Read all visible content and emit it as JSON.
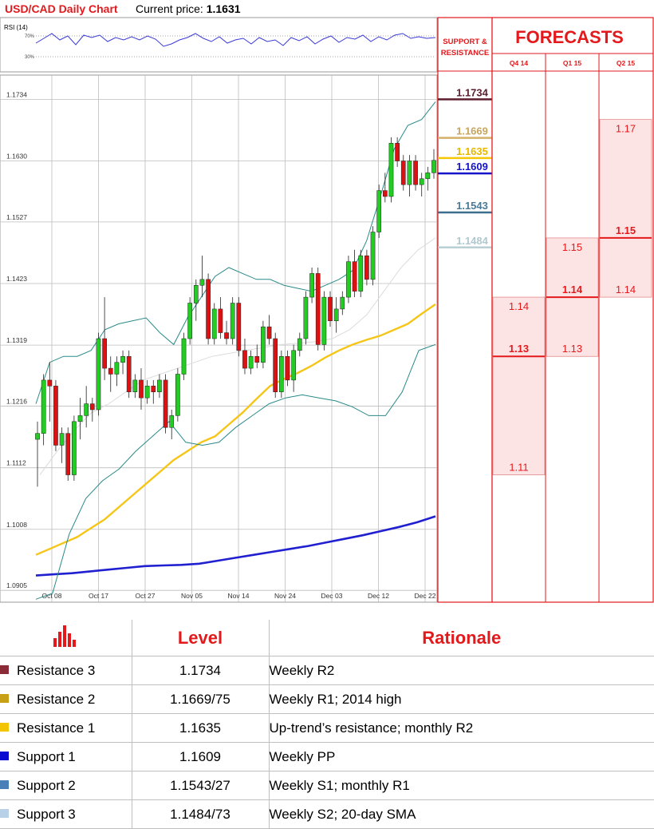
{
  "header": {
    "chart_title": "USD/CAD Daily Chart",
    "price_label": "Current price:",
    "price_value": "1.1631"
  },
  "rsi": {
    "label": "RSI (14)",
    "upper": "70%",
    "lower": "30%"
  },
  "support_resistance": {
    "header": [
      "SUPPORT &",
      "RESISTANCE"
    ],
    "levels": [
      {
        "value": "1.1734",
        "price": 1.1734,
        "color": "#5c1d2e",
        "text_color": "#5c1d2e"
      },
      {
        "value": "1.1669",
        "price": 1.1669,
        "color": "#d4b06a",
        "text_color": "#c8a560"
      },
      {
        "value": "1.1635",
        "price": 1.1635,
        "color": "#f6c700",
        "text_color": "#e8b800"
      },
      {
        "value": "1.1609",
        "price": 1.1609,
        "color": "#1414c8",
        "text_color": "#1414c8"
      },
      {
        "value": "1.1543",
        "price": 1.1543,
        "color": "#3e6e8e",
        "text_color": "#4a7a98"
      },
      {
        "value": "1.1484",
        "price": 1.1484,
        "color": "#b8cfd6",
        "text_color": "#b0c8d0"
      }
    ]
  },
  "forecasts": {
    "title": "FORECASTS",
    "columns": [
      {
        "label": "Q4 14",
        "high": 1.14,
        "low": 1.11,
        "mid": 1.13,
        "high_label": "1.14",
        "low_label": "1.11",
        "mid_label": "1.13"
      },
      {
        "label": "Q1 15",
        "high": 1.15,
        "low": 1.13,
        "mid": 1.14,
        "high_label": "1.15",
        "low_label": "1.13",
        "mid_label": "1.14"
      },
      {
        "label": "Q2 15",
        "high": 1.17,
        "low": 1.14,
        "mid": 1.15,
        "high_label": "1.17",
        "low_label": "1.14",
        "mid_label": "1.15"
      }
    ]
  },
  "chart_data": {
    "type": "candlestick",
    "ylim": [
      1.0885,
      1.1775
    ],
    "yticks": [
      1.1734,
      1.163,
      1.1527,
      1.1423,
      1.1319,
      1.1216,
      1.1112,
      1.1008,
      1.0905
    ],
    "ytick_labels": [
      "1.1734",
      "1.1630",
      "1.1527",
      "1.1423",
      "1.1319",
      "1.1216",
      "1.1112",
      "1.1008",
      "1.0905"
    ],
    "xtick_labels": [
      "Oct 08",
      "Oct 17",
      "Oct 27",
      "Nov 05",
      "Nov 14",
      "Nov 24",
      "Dec 03",
      "Dec 12",
      "Dec 22"
    ],
    "candles": [
      [
        1.116,
        1.119,
        1.108,
        1.117
      ],
      [
        1.117,
        1.127,
        1.115,
        1.126
      ],
      [
        1.126,
        1.129,
        1.119,
        1.125
      ],
      [
        1.125,
        1.126,
        1.114,
        1.115
      ],
      [
        1.115,
        1.118,
        1.112,
        1.117
      ],
      [
        1.117,
        1.118,
        1.109,
        1.11
      ],
      [
        1.11,
        1.12,
        1.109,
        1.119
      ],
      [
        1.119,
        1.123,
        1.116,
        1.12
      ],
      [
        1.12,
        1.125,
        1.118,
        1.122
      ],
      [
        1.122,
        1.123,
        1.119,
        1.121
      ],
      [
        1.121,
        1.134,
        1.12,
        1.133
      ],
      [
        1.133,
        1.14,
        1.126,
        1.128
      ],
      [
        1.128,
        1.13,
        1.124,
        1.127
      ],
      [
        1.127,
        1.13,
        1.125,
        1.129
      ],
      [
        1.129,
        1.131,
        1.127,
        1.13
      ],
      [
        1.13,
        1.131,
        1.123,
        1.124
      ],
      [
        1.124,
        1.127,
        1.123,
        1.126
      ],
      [
        1.126,
        1.128,
        1.121,
        1.123
      ],
      [
        1.123,
        1.126,
        1.122,
        1.125
      ],
      [
        1.125,
        1.126,
        1.122,
        1.124
      ],
      [
        1.124,
        1.127,
        1.123,
        1.126
      ],
      [
        1.126,
        1.127,
        1.117,
        1.118
      ],
      [
        1.118,
        1.121,
        1.116,
        1.12
      ],
      [
        1.12,
        1.128,
        1.119,
        1.127
      ],
      [
        1.127,
        1.134,
        1.126,
        1.133
      ],
      [
        1.133,
        1.14,
        1.132,
        1.139
      ],
      [
        1.139,
        1.143,
        1.136,
        1.142
      ],
      [
        1.142,
        1.147,
        1.14,
        1.143
      ],
      [
        1.143,
        1.144,
        1.132,
        1.133
      ],
      [
        1.133,
        1.139,
        1.132,
        1.138
      ],
      [
        1.138,
        1.14,
        1.133,
        1.134
      ],
      [
        1.134,
        1.136,
        1.132,
        1.133
      ],
      [
        1.133,
        1.14,
        1.132,
        1.139
      ],
      [
        1.139,
        1.14,
        1.13,
        1.131
      ],
      [
        1.131,
        1.133,
        1.127,
        1.128
      ],
      [
        1.128,
        1.131,
        1.127,
        1.13
      ],
      [
        1.13,
        1.132,
        1.128,
        1.129
      ],
      [
        1.129,
        1.136,
        1.128,
        1.135
      ],
      [
        1.135,
        1.137,
        1.132,
        1.133
      ],
      [
        1.133,
        1.134,
        1.123,
        1.124
      ],
      [
        1.124,
        1.131,
        1.123,
        1.13
      ],
      [
        1.13,
        1.131,
        1.125,
        1.126
      ],
      [
        1.126,
        1.132,
        1.124,
        1.131
      ],
      [
        1.131,
        1.134,
        1.13,
        1.133
      ],
      [
        1.133,
        1.141,
        1.132,
        1.14
      ],
      [
        1.14,
        1.145,
        1.139,
        1.144
      ],
      [
        1.144,
        1.145,
        1.131,
        1.132
      ],
      [
        1.132,
        1.141,
        1.131,
        1.14
      ],
      [
        1.14,
        1.141,
        1.135,
        1.136
      ],
      [
        1.136,
        1.14,
        1.134,
        1.138
      ],
      [
        1.138,
        1.141,
        1.137,
        1.14
      ],
      [
        1.14,
        1.147,
        1.139,
        1.146
      ],
      [
        1.146,
        1.148,
        1.14,
        1.141
      ],
      [
        1.141,
        1.148,
        1.14,
        1.147
      ],
      [
        1.147,
        1.148,
        1.142,
        1.143
      ],
      [
        1.143,
        1.152,
        1.142,
        1.151
      ],
      [
        1.151,
        1.159,
        1.15,
        1.158
      ],
      [
        1.158,
        1.161,
        1.156,
        1.157
      ],
      [
        1.157,
        1.167,
        1.156,
        1.166
      ],
      [
        1.166,
        1.167,
        1.162,
        1.163
      ],
      [
        1.163,
        1.164,
        1.158,
        1.159
      ],
      [
        1.159,
        1.164,
        1.157,
        1.163
      ],
      [
        1.163,
        1.164,
        1.158,
        1.159
      ],
      [
        1.159,
        1.161,
        1.157,
        1.16
      ],
      [
        1.16,
        1.162,
        1.158,
        1.161
      ],
      [
        1.161,
        1.165,
        1.16,
        1.1631
      ]
    ],
    "series": [
      {
        "kind": "sma_fast",
        "color": "#f5c518",
        "values": [
          1.0965,
          1.0975,
          1.0985,
          1.0995,
          1.101,
          1.1025,
          1.1045,
          1.1065,
          1.1085,
          1.1105,
          1.1125,
          1.114,
          1.1155,
          1.1165,
          1.1185,
          1.1205,
          1.1228,
          1.125,
          1.1262,
          1.1272,
          1.1284,
          1.1298,
          1.131,
          1.132,
          1.1328,
          1.1335,
          1.1345,
          1.1355,
          1.1372,
          1.1388
        ]
      },
      {
        "kind": "sma_slow",
        "color": "#2020d0",
        "values": [
          1.093,
          1.0932,
          1.0934,
          1.0937,
          1.094,
          1.0943,
          1.0946,
          1.0947,
          1.0948,
          1.095,
          1.0955,
          1.096,
          1.0965,
          1.097,
          1.0975,
          1.098,
          1.0986,
          1.0992,
          1.0998,
          1.1005,
          1.1012,
          1.102,
          1.103
        ]
      },
      {
        "kind": "band_upper",
        "color": "#2a8a8a",
        "values": [
          1.122,
          1.129,
          1.13,
          1.13,
          1.131,
          1.1345,
          1.1355,
          1.136,
          1.1365,
          1.134,
          1.132,
          1.1365,
          1.14,
          1.1435,
          1.145,
          1.144,
          1.143,
          1.143,
          1.142,
          1.1415,
          1.141,
          1.142,
          1.143,
          1.1445,
          1.1495,
          1.157,
          1.165,
          1.169,
          1.17,
          1.173
        ]
      },
      {
        "kind": "band_lower",
        "color": "#2a8a8a",
        "values": [
          1.089,
          1.09,
          1.1,
          1.106,
          1.109,
          1.111,
          1.114,
          1.1165,
          1.119,
          1.1155,
          1.115,
          1.1155,
          1.118,
          1.12,
          1.122,
          1.123,
          1.1235,
          1.123,
          1.1225,
          1.1215,
          1.12,
          1.12,
          1.124,
          1.131,
          1.132
        ]
      },
      {
        "kind": "band_middle",
        "color": "#dcdcdc",
        "values": [
          1.11,
          1.114,
          1.1175,
          1.1205,
          1.122,
          1.124,
          1.126,
          1.127,
          1.128,
          1.129,
          1.13,
          1.1305,
          1.131,
          1.1315,
          1.132,
          1.1322,
          1.1325,
          1.133,
          1.1345,
          1.137,
          1.141,
          1.145,
          1.148,
          1.15
        ]
      }
    ]
  },
  "table": {
    "col_level": "Level",
    "col_rationale": "Rationale",
    "rows": [
      {
        "name": "Resistance 3",
        "level": "1.1734",
        "rationale": "Weekly R2",
        "color": "#8b2b37"
      },
      {
        "name": "Resistance 2",
        "level": "1.1669/75",
        "rationale": "Weekly R1; 2014 high",
        "color": "#c8a015"
      },
      {
        "name": "Resistance 1",
        "level": "1.1635",
        "rationale": "Up-trend’s resistance; monthly R2",
        "color": "#f2c500"
      },
      {
        "name": "Support 1",
        "level": "1.1609",
        "rationale": "Weekly PP",
        "color": "#0a0ad0"
      },
      {
        "name": "Support 2",
        "level": "1.1543/27",
        "rationale": "Weekly S1; monthly R1",
        "color": "#4a80b8"
      },
      {
        "name": "Support 3",
        "level": "1.1484/73",
        "rationale": "Weekly S2; 20-day SMA",
        "color": "#b8d0e8"
      }
    ]
  }
}
